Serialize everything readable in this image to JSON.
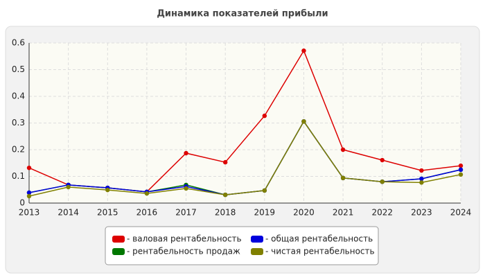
{
  "chart_data": {
    "type": "line",
    "title": "Динамика показателей прибыли",
    "categories": [
      "2013",
      "2014",
      "2015",
      "2016",
      "2017",
      "2018",
      "2019",
      "2020",
      "2021",
      "2022",
      "2023",
      "2024"
    ],
    "series": [
      {
        "name": "- валовая рентабельность",
        "color": "#dd0000",
        "values": [
          0.132,
          0.068,
          0.057,
          0.042,
          0.187,
          0.153,
          0.327,
          0.571,
          0.2,
          0.161,
          0.122,
          0.14
        ]
      },
      {
        "name": "- рентабельность продаж",
        "color": "#007700",
        "values": [
          0.039,
          0.068,
          0.057,
          0.042,
          0.068,
          0.031,
          0.047,
          0.306,
          0.094,
          0.08,
          0.091,
          0.125
        ]
      },
      {
        "name": "- общая рентабельность",
        "color": "#0000dd",
        "values": [
          0.039,
          0.068,
          0.057,
          0.042,
          0.062,
          0.031,
          0.047,
          0.306,
          0.094,
          0.08,
          0.091,
          0.125
        ]
      },
      {
        "name": "- чистая рентабельность",
        "color": "#808000",
        "values": [
          0.026,
          0.06,
          0.049,
          0.036,
          0.055,
          0.031,
          0.047,
          0.306,
          0.094,
          0.08,
          0.077,
          0.107
        ]
      }
    ],
    "ylim": [
      0,
      0.6
    ],
    "yticks": [
      0,
      0.1,
      0.2,
      0.3,
      0.4,
      0.5,
      0.6
    ],
    "grid": true
  }
}
